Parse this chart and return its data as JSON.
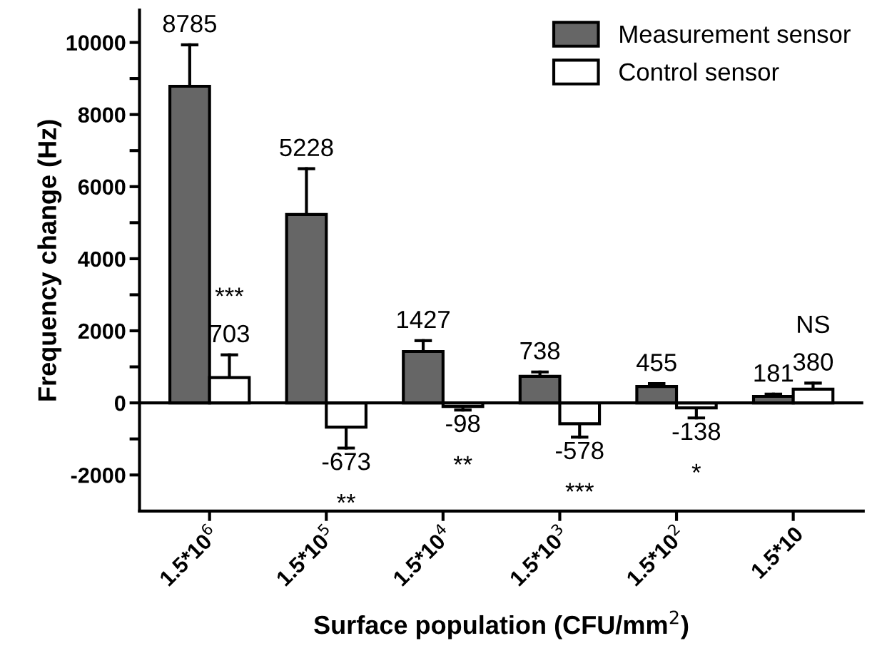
{
  "chart_data": {
    "type": "bar",
    "xlabel": "Surface population (CFU/mm$^{2}$)",
    "ylabel": "Frequency change (Hz)",
    "categories": [
      "1.5*10$^{6}$",
      "1.5*10$^{5}$",
      "1.5*10$^{4}$",
      "1.5*10$^{3}$",
      "1.5*10$^{2}$",
      "1.5*10"
    ],
    "series": [
      {
        "name": "Measurement sensor",
        "color": "#666666",
        "values": [
          8785,
          5228,
          1427,
          738,
          455,
          181
        ],
        "errors": [
          1150,
          1270,
          300,
          120,
          80,
          60
        ]
      },
      {
        "name": "Control sensor",
        "color": "#ffffff",
        "values": [
          703,
          -673,
          -98,
          -578,
          -138,
          380
        ],
        "errors": [
          630,
          580,
          100,
          370,
          280,
          170
        ]
      }
    ],
    "ylim": [
      -3000,
      10900
    ],
    "yticks": [
      -2000,
      {
        "value": -1000,
        "label": null
      },
      0,
      {
        "value": 1000,
        "label": null
      },
      2000,
      {
        "value": 3000,
        "label": null
      },
      4000,
      {
        "value": 5000,
        "label": null
      },
      6000,
      {
        "value": 7000,
        "label": null
      },
      8000,
      {
        "value": 9000,
        "label": null
      },
      10000
    ],
    "ref_lines": [
      {
        "axis": "y",
        "value": 0,
        "color": "#000000"
      }
    ],
    "data_labels": true,
    "annotations": [
      "***",
      "**",
      "**",
      "***",
      "*",
      "NS"
    ],
    "legend": "top right",
    "grid": false
  }
}
